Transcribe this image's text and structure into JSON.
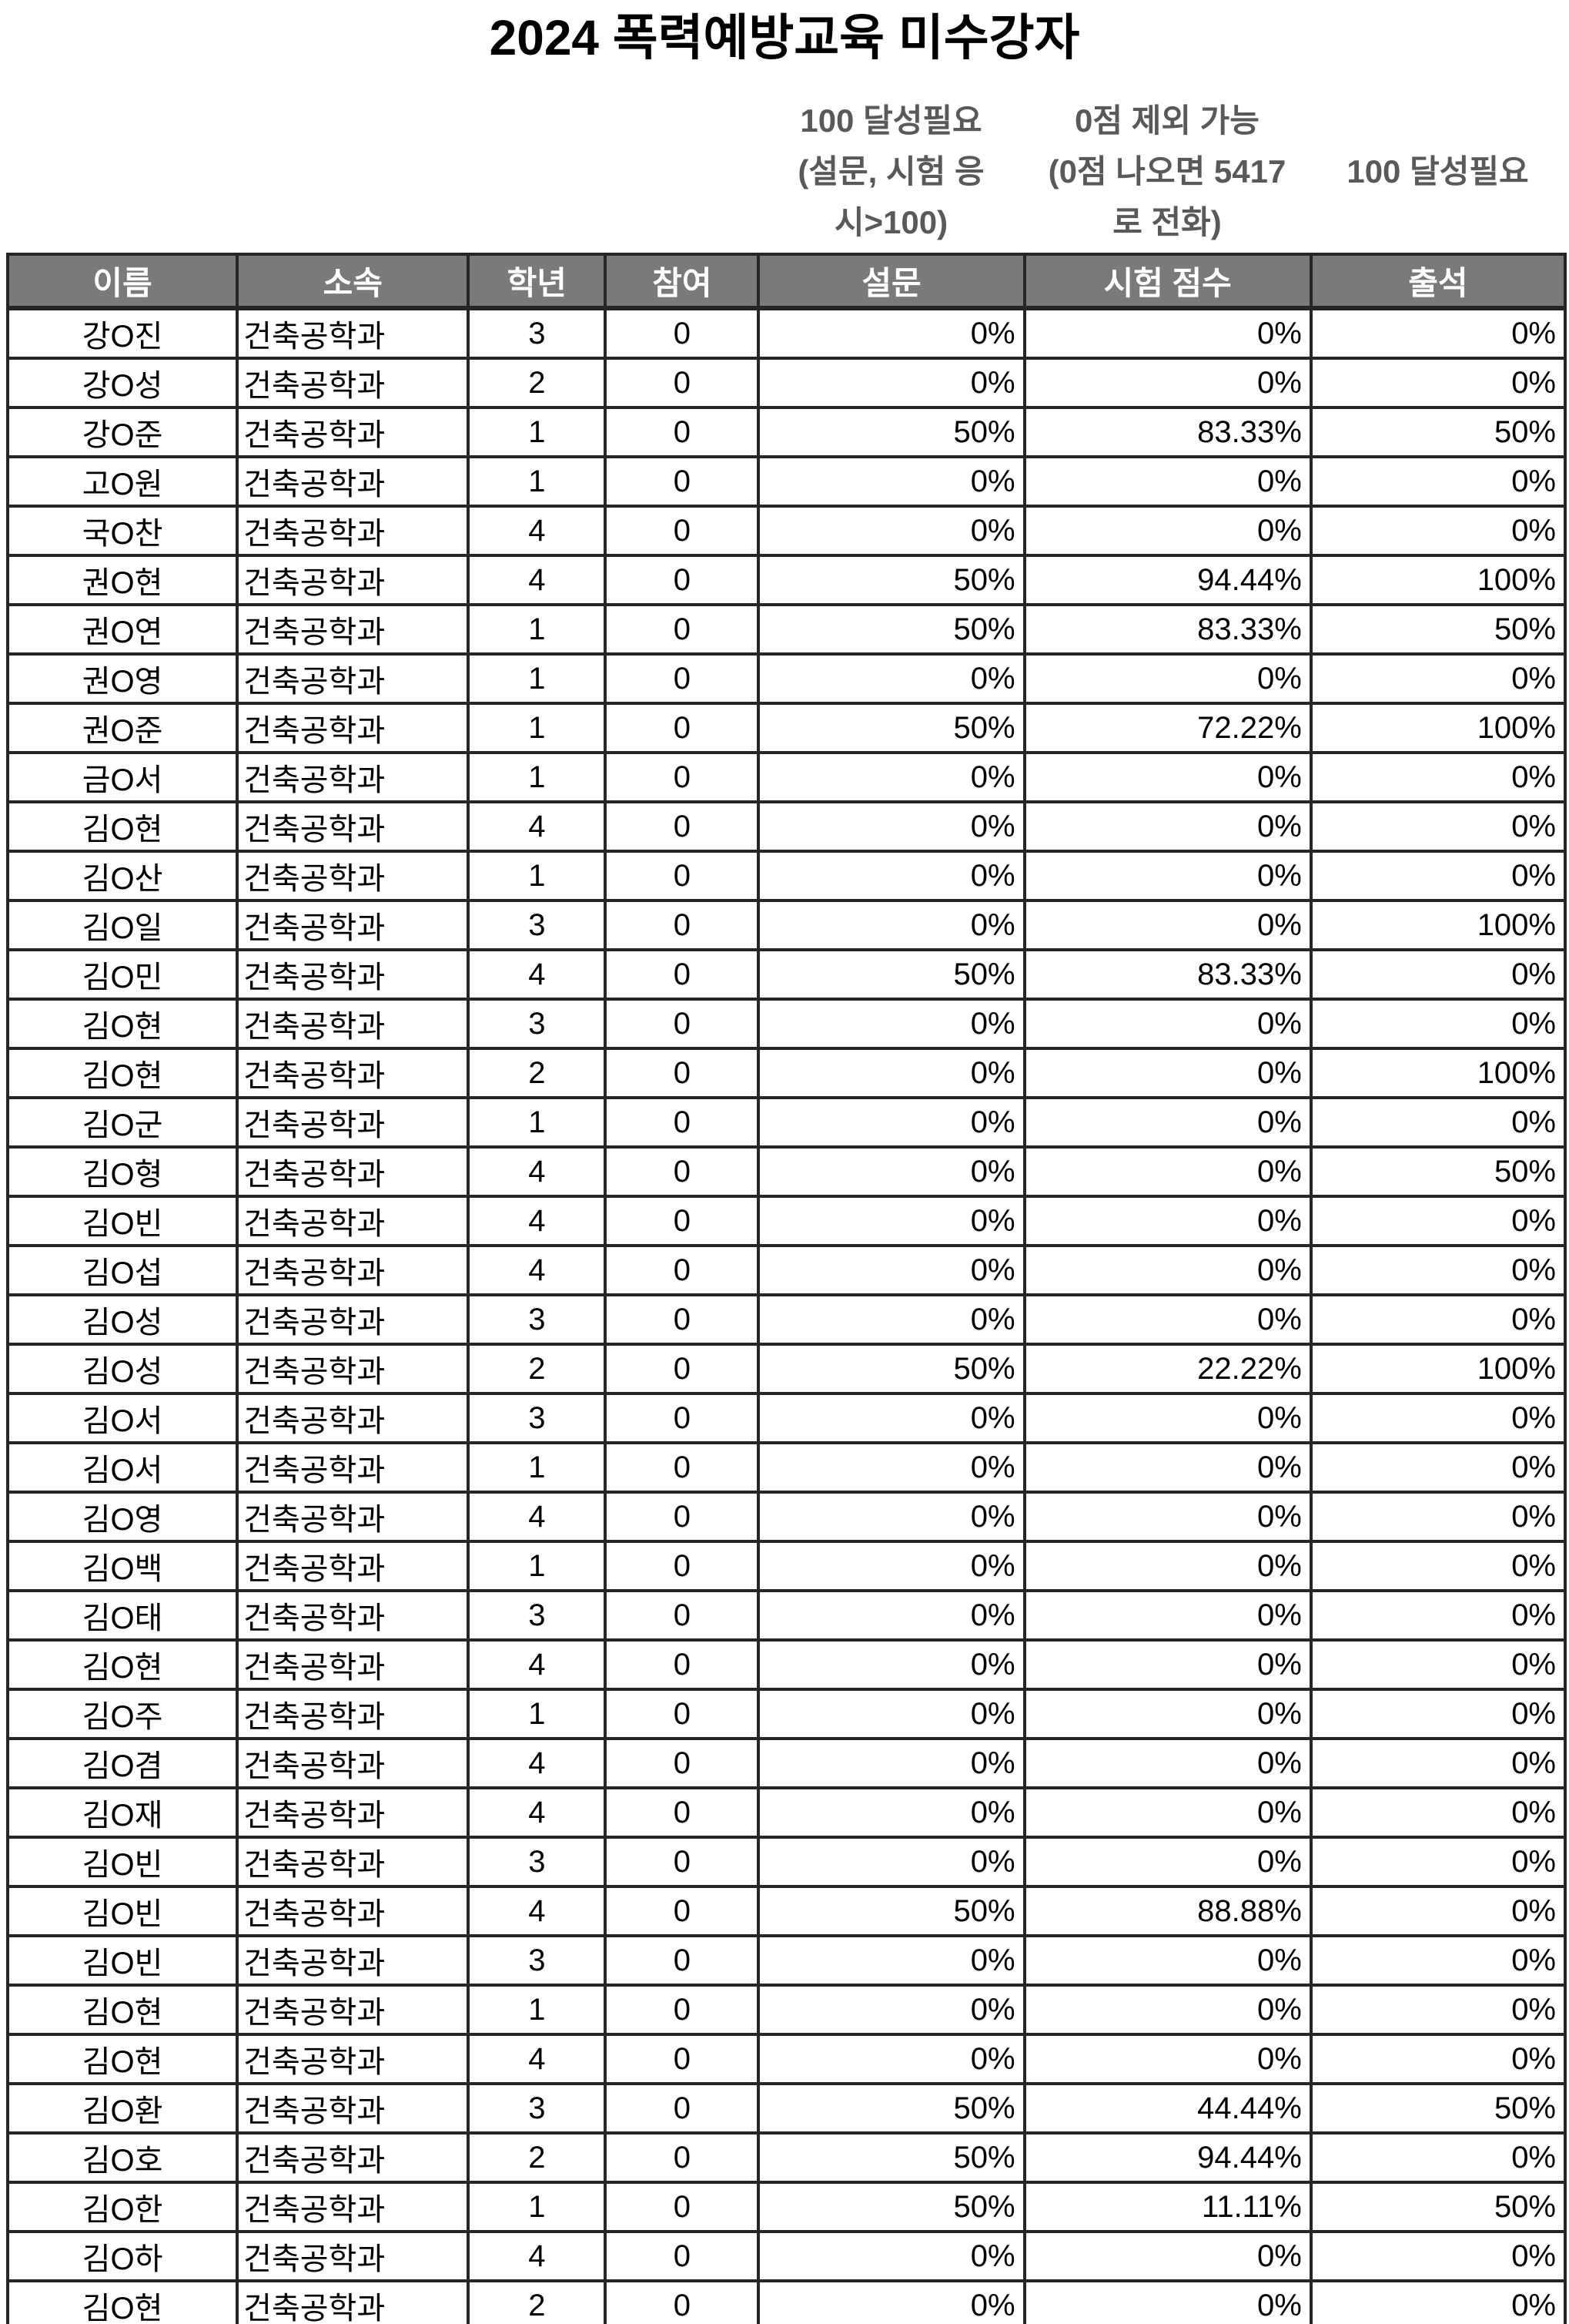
{
  "page": {
    "title": "2024 폭력예방교육 미수강자"
  },
  "colors": {
    "header_bg": "#7a7a7a",
    "header_text": "#ffffff",
    "note_text": "#595959",
    "border": "#262626"
  },
  "notes": {
    "survey_line1": "100 달성필요",
    "survey_line2": "(설문, 시험 응",
    "survey_line3": "시>100)",
    "exam_line1": "0점 제외 가능",
    "exam_line2": "(0점 나오면 5417",
    "exam_line3": "로 전화)",
    "attendance_line1": "100 달성필요"
  },
  "table": {
    "columns": [
      "이름",
      "소속",
      "학년",
      "참여",
      "설문",
      "시험 점수",
      "출석"
    ],
    "rows": [
      [
        "강O진",
        "건축공학과",
        "3",
        "0",
        "0%",
        "0%",
        "0%"
      ],
      [
        "강O성",
        "건축공학과",
        "2",
        "0",
        "0%",
        "0%",
        "0%"
      ],
      [
        "강O준",
        "건축공학과",
        "1",
        "0",
        "50%",
        "83.33%",
        "50%"
      ],
      [
        "고O원",
        "건축공학과",
        "1",
        "0",
        "0%",
        "0%",
        "0%"
      ],
      [
        "국O찬",
        "건축공학과",
        "4",
        "0",
        "0%",
        "0%",
        "0%"
      ],
      [
        "권O현",
        "건축공학과",
        "4",
        "0",
        "50%",
        "94.44%",
        "100%"
      ],
      [
        "권O연",
        "건축공학과",
        "1",
        "0",
        "50%",
        "83.33%",
        "50%"
      ],
      [
        "권O영",
        "건축공학과",
        "1",
        "0",
        "0%",
        "0%",
        "0%"
      ],
      [
        "권O준",
        "건축공학과",
        "1",
        "0",
        "50%",
        "72.22%",
        "100%"
      ],
      [
        "금O서",
        "건축공학과",
        "1",
        "0",
        "0%",
        "0%",
        "0%"
      ],
      [
        "김O현",
        "건축공학과",
        "4",
        "0",
        "0%",
        "0%",
        "0%"
      ],
      [
        "김O산",
        "건축공학과",
        "1",
        "0",
        "0%",
        "0%",
        "0%"
      ],
      [
        "김O일",
        "건축공학과",
        "3",
        "0",
        "0%",
        "0%",
        "100%"
      ],
      [
        "김O민",
        "건축공학과",
        "4",
        "0",
        "50%",
        "83.33%",
        "0%"
      ],
      [
        "김O현",
        "건축공학과",
        "3",
        "0",
        "0%",
        "0%",
        "0%"
      ],
      [
        "김O현",
        "건축공학과",
        "2",
        "0",
        "0%",
        "0%",
        "100%"
      ],
      [
        "김O군",
        "건축공학과",
        "1",
        "0",
        "0%",
        "0%",
        "0%"
      ],
      [
        "김O형",
        "건축공학과",
        "4",
        "0",
        "0%",
        "0%",
        "50%"
      ],
      [
        "김O빈",
        "건축공학과",
        "4",
        "0",
        "0%",
        "0%",
        "0%"
      ],
      [
        "김O섭",
        "건축공학과",
        "4",
        "0",
        "0%",
        "0%",
        "0%"
      ],
      [
        "김O성",
        "건축공학과",
        "3",
        "0",
        "0%",
        "0%",
        "0%"
      ],
      [
        "김O성",
        "건축공학과",
        "2",
        "0",
        "50%",
        "22.22%",
        "100%"
      ],
      [
        "김O서",
        "건축공학과",
        "3",
        "0",
        "0%",
        "0%",
        "0%"
      ],
      [
        "김O서",
        "건축공학과",
        "1",
        "0",
        "0%",
        "0%",
        "0%"
      ],
      [
        "김O영",
        "건축공학과",
        "4",
        "0",
        "0%",
        "0%",
        "0%"
      ],
      [
        "김O백",
        "건축공학과",
        "1",
        "0",
        "0%",
        "0%",
        "0%"
      ],
      [
        "김O태",
        "건축공학과",
        "3",
        "0",
        "0%",
        "0%",
        "0%"
      ],
      [
        "김O현",
        "건축공학과",
        "4",
        "0",
        "0%",
        "0%",
        "0%"
      ],
      [
        "김O주",
        "건축공학과",
        "1",
        "0",
        "0%",
        "0%",
        "0%"
      ],
      [
        "김O겸",
        "건축공학과",
        "4",
        "0",
        "0%",
        "0%",
        "0%"
      ],
      [
        "김O재",
        "건축공학과",
        "4",
        "0",
        "0%",
        "0%",
        "0%"
      ],
      [
        "김O빈",
        "건축공학과",
        "3",
        "0",
        "0%",
        "0%",
        "0%"
      ],
      [
        "김O빈",
        "건축공학과",
        "4",
        "0",
        "50%",
        "88.88%",
        "0%"
      ],
      [
        "김O빈",
        "건축공학과",
        "3",
        "0",
        "0%",
        "0%",
        "0%"
      ],
      [
        "김O현",
        "건축공학과",
        "1",
        "0",
        "0%",
        "0%",
        "0%"
      ],
      [
        "김O현",
        "건축공학과",
        "4",
        "0",
        "0%",
        "0%",
        "0%"
      ],
      [
        "김O환",
        "건축공학과",
        "3",
        "0",
        "50%",
        "44.44%",
        "50%"
      ],
      [
        "김O호",
        "건축공학과",
        "2",
        "0",
        "50%",
        "94.44%",
        "0%"
      ],
      [
        "김O한",
        "건축공학과",
        "1",
        "0",
        "50%",
        "11.11%",
        "50%"
      ],
      [
        "김O하",
        "건축공학과",
        "4",
        "0",
        "0%",
        "0%",
        "0%"
      ],
      [
        "김O현",
        "건축공학과",
        "2",
        "0",
        "0%",
        "0%",
        "0%"
      ]
    ]
  }
}
